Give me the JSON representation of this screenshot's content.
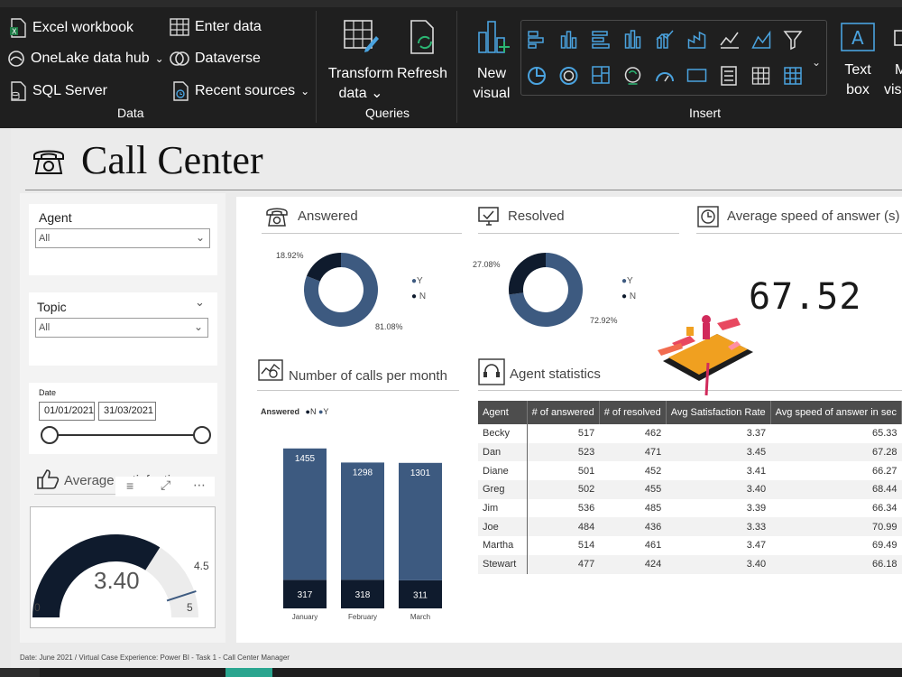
{
  "ribbon": {
    "data_group": {
      "label": "Data",
      "items": [
        "Excel workbook",
        "OneLake data hub",
        "SQL Server",
        "Enter data",
        "Dataverse",
        "Recent sources"
      ]
    },
    "queries_group": {
      "label": "Queries",
      "transform_line1": "Transform",
      "transform_line2": "data",
      "refresh": "Refresh"
    },
    "insert_group": {
      "label": "Insert",
      "new_visual_line1": "New",
      "new_visual_line2": "visual",
      "text_box_line1": "Text",
      "text_box_line2": "box",
      "more_line1": "M",
      "more_line2": "visu"
    },
    "gallery_icons": [
      "stacked-bar-icon",
      "clustered-column-icon",
      "clustered-bar-icon",
      "stacked-column-icon",
      "line-column-icon",
      "ribbon-chart-icon",
      "line-chart-icon",
      "area-chart-icon",
      "funnel-icon",
      "pie-chart-icon",
      "donut-chart-icon",
      "treemap-icon",
      "map-icon",
      "gauge-icon",
      "card-icon",
      "multi-row-card-icon",
      "table-icon",
      "matrix-icon"
    ]
  },
  "report": {
    "title": "Call Center",
    "footer": "Date: June 2021 / Virtual Case Experience: Power BI - Task 1 - Call Center Manager"
  },
  "slicers": {
    "agent": {
      "title": "Agent",
      "value": "All"
    },
    "topic": {
      "title": "Topic",
      "value": "All"
    },
    "date": {
      "title": "Date",
      "start": "01/01/2021",
      "end": "31/03/2021"
    }
  },
  "avg_satisfaction": {
    "title": "Average satisfaction",
    "value": "3.40",
    "min": "0",
    "max": "5",
    "target": "4.5",
    "value_num": 3.4,
    "target_num": 4.5,
    "max_num": 5
  },
  "answered": {
    "title": "Answered",
    "legend": [
      "Y",
      "N"
    ],
    "label_n": "18.92%",
    "label_y": "81.08%"
  },
  "resolved": {
    "title": "Resolved",
    "legend": [
      "Y",
      "N"
    ],
    "label_n": "27.08%",
    "label_y": "72.92%"
  },
  "speed": {
    "title": "Average speed of answer (s)",
    "value": "67.52"
  },
  "calls_per_month": {
    "title": "Number of calls per month",
    "legend_title": "Answered",
    "legend": [
      "N",
      "Y"
    ]
  },
  "agent_stats": {
    "title": "Agent statistics",
    "columns": [
      "Agent",
      "# of answered",
      "# of resolved",
      "Avg Satisfaction Rate",
      "Avg speed of answer in sec"
    ],
    "rows": [
      [
        "Becky",
        "517",
        "462",
        "3.37",
        "65.33"
      ],
      [
        "Dan",
        "523",
        "471",
        "3.45",
        "67.28"
      ],
      [
        "Diane",
        "501",
        "452",
        "3.41",
        "66.27"
      ],
      [
        "Greg",
        "502",
        "455",
        "3.40",
        "68.44"
      ],
      [
        "Jim",
        "536",
        "485",
        "3.39",
        "66.34"
      ],
      [
        "Joe",
        "484",
        "436",
        "3.33",
        "70.99"
      ],
      [
        "Martha",
        "514",
        "461",
        "3.47",
        "69.49"
      ],
      [
        "Stewart",
        "477",
        "424",
        "3.40",
        "66.18"
      ]
    ]
  },
  "colors": {
    "navy": "#0f1b2d",
    "steel": "#3d5a80",
    "ribbon": "#1f1f1f",
    "accent": "#2aa58f"
  },
  "chart_data": [
    {
      "type": "pie",
      "title": "Answered",
      "categories": [
        "Y",
        "N"
      ],
      "values": [
        81.08,
        18.92
      ]
    },
    {
      "type": "pie",
      "title": "Resolved",
      "categories": [
        "Y",
        "N"
      ],
      "values": [
        72.92,
        27.08
      ]
    },
    {
      "type": "bar",
      "title": "Number of calls per month",
      "categories": [
        "January",
        "February",
        "March"
      ],
      "series": [
        {
          "name": "N",
          "values": [
            317,
            318,
            311
          ]
        },
        {
          "name": "Y",
          "values": [
            1455,
            1298,
            1301
          ]
        }
      ],
      "stacked": true
    }
  ]
}
